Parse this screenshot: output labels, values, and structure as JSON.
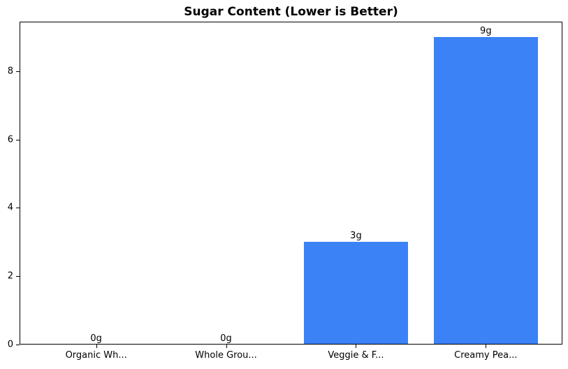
{
  "chart_data": {
    "type": "bar",
    "title": "Sugar Content (Lower is Better)",
    "categories": [
      "Organic Wh...",
      "Whole Grou...",
      "Veggie & F...",
      "Creamy Pea..."
    ],
    "values": [
      0,
      0,
      3,
      9
    ],
    "value_labels": [
      "0g",
      "0g",
      "3g",
      "9g"
    ],
    "yticks": [
      0,
      2,
      4,
      6,
      8
    ],
    "ylim": [
      0,
      9.45
    ],
    "xlabel": "",
    "ylabel": "",
    "grid": false,
    "legend_position": "none",
    "bar_color": "#3b82f6",
    "axis_color": "#000000",
    "background_color": "#ffffff"
  }
}
